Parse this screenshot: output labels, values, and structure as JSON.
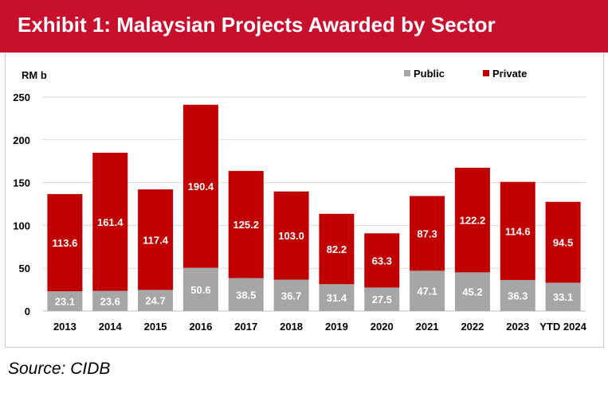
{
  "header": {
    "title": "Exhibit 1: Malaysian Projects Awarded by Sector"
  },
  "footer": {
    "source": "Source: CIDB"
  },
  "colors": {
    "header_bg": "#c8102e",
    "public": "#a6a6a6",
    "private": "#c00000",
    "gridline": "#d9d9d9"
  },
  "chart_data": {
    "type": "bar",
    "stacked": true,
    "ylabel": "RM b",
    "ylim": [
      0,
      250
    ],
    "yticks": [
      0,
      50,
      100,
      150,
      200,
      250
    ],
    "grid": true,
    "legend_position": "top-right",
    "categories": [
      "2013",
      "2014",
      "2015",
      "2016",
      "2017",
      "2018",
      "2019",
      "2020",
      "2021",
      "2022",
      "2023",
      "YTD 2024"
    ],
    "series": [
      {
        "name": "Public",
        "color": "#a6a6a6",
        "values": [
          23.1,
          23.6,
          24.7,
          50.6,
          38.5,
          36.7,
          31.4,
          27.5,
          47.1,
          45.2,
          36.3,
          33.1
        ]
      },
      {
        "name": "Private",
        "color": "#c00000",
        "values": [
          113.6,
          161.4,
          117.4,
          190.4,
          125.2,
          103.0,
          82.2,
          63.3,
          87.3,
          122.2,
          114.6,
          94.5
        ]
      }
    ]
  }
}
